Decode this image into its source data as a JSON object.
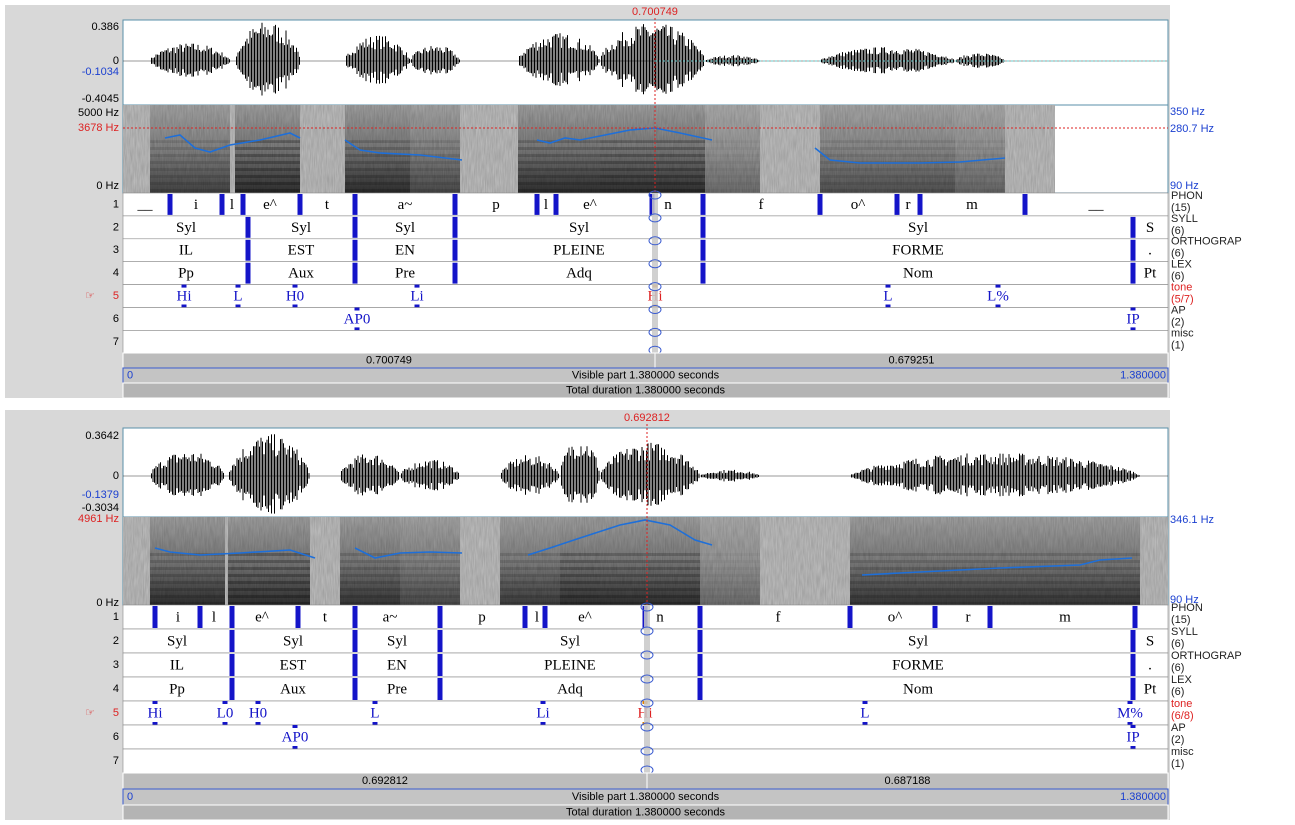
{
  "panels": [
    {
      "cursor_time": "0.700749",
      "amplitude": {
        "max": "0.386",
        "zero": "0",
        "cursor": "-0.1034",
        "min": "-0.4045"
      },
      "spectrogram": {
        "max": "5000 Hz",
        "cursor": "3678 Hz",
        "min": "0 Hz"
      },
      "pitch": {
        "max": "350 Hz",
        "cursor": "280.7 Hz",
        "min": "90 Hz"
      },
      "active_tier_marker": "☞",
      "tiers": [
        {
          "number": "1",
          "name": "PHON",
          "count": "(15)",
          "labels": [
            "__",
            "i",
            "l",
            "e^",
            "t",
            "a~",
            "p",
            "l",
            "e^",
            "n",
            "f",
            "o^",
            "r",
            "m",
            "__"
          ]
        },
        {
          "number": "2",
          "name": "SYLL",
          "count": "(6)",
          "labels": [
            "Syl",
            "Syl",
            "Syl",
            "Syl",
            "Syl",
            "S"
          ]
        },
        {
          "number": "3",
          "name": "ORTHOGRAP",
          "count": "(6)",
          "labels": [
            "IL",
            "EST",
            "EN",
            "PLEINE",
            "FORME",
            "."
          ]
        },
        {
          "number": "4",
          "name": "LEX",
          "count": "(6)",
          "labels": [
            "Pp",
            "Aux",
            "Pre",
            "Adq",
            "Nom",
            "Pt"
          ]
        },
        {
          "number": "5",
          "name": "tone",
          "count": "(5/7)",
          "labels": [
            "Hi",
            "L",
            "H0",
            "Li",
            "Hi",
            "L",
            "L%"
          ]
        },
        {
          "number": "6",
          "name": "AP",
          "count": "(2)",
          "labels": [
            "AP0",
            "IP"
          ]
        },
        {
          "number": "7",
          "name": "misc",
          "count": "(1)",
          "labels": []
        }
      ],
      "time_bar": {
        "left": "0.700749",
        "right": "0.679251",
        "start": "0",
        "visible": "Visible part 1.380000 seconds",
        "end": "1.380000",
        "total": "Total duration 1.380000 seconds"
      }
    },
    {
      "cursor_time": "0.692812",
      "amplitude": {
        "max": "0.3642",
        "zero": "0",
        "cursor": "-0.1379",
        "min": "-0.3034"
      },
      "spectrogram": {
        "cursor": "4961 Hz",
        "min": "0 Hz"
      },
      "pitch": {
        "max": "346.1 Hz",
        "min": "90 Hz"
      },
      "active_tier_marker": "☞",
      "tiers": [
        {
          "number": "1",
          "name": "PHON",
          "count": "(15)",
          "labels": [
            "i",
            "l",
            "e^",
            "t",
            "a~",
            "p",
            "l",
            "e^",
            "n",
            "f",
            "o^",
            "r",
            "m"
          ]
        },
        {
          "number": "2",
          "name": "SYLL",
          "count": "(6)",
          "labels": [
            "Syl",
            "Syl",
            "Syl",
            "Syl",
            "Syl",
            "S"
          ]
        },
        {
          "number": "3",
          "name": "ORTHOGRAP",
          "count": "(6)",
          "labels": [
            "IL",
            "EST",
            "EN",
            "PLEINE",
            "FORME",
            "."
          ]
        },
        {
          "number": "4",
          "name": "LEX",
          "count": "(6)",
          "labels": [
            "Pp",
            "Aux",
            "Pre",
            "Adq",
            "Nom",
            "Pt"
          ]
        },
        {
          "number": "5",
          "name": "tone",
          "count": "(6/8)",
          "labels": [
            "Hi",
            "L0",
            "H0",
            "L",
            "Li",
            "Hi",
            "L",
            "M%"
          ]
        },
        {
          "number": "6",
          "name": "AP",
          "count": "(2)",
          "labels": [
            "AP0",
            "IP"
          ]
        },
        {
          "number": "7",
          "name": "misc",
          "count": "(1)",
          "labels": []
        }
      ],
      "time_bar": {
        "left": "0.692812",
        "right": "0.687188",
        "start": "0",
        "visible": "Visible part 1.380000 seconds",
        "end": "1.380000",
        "total": "Total duration 1.380000 seconds"
      }
    }
  ]
}
